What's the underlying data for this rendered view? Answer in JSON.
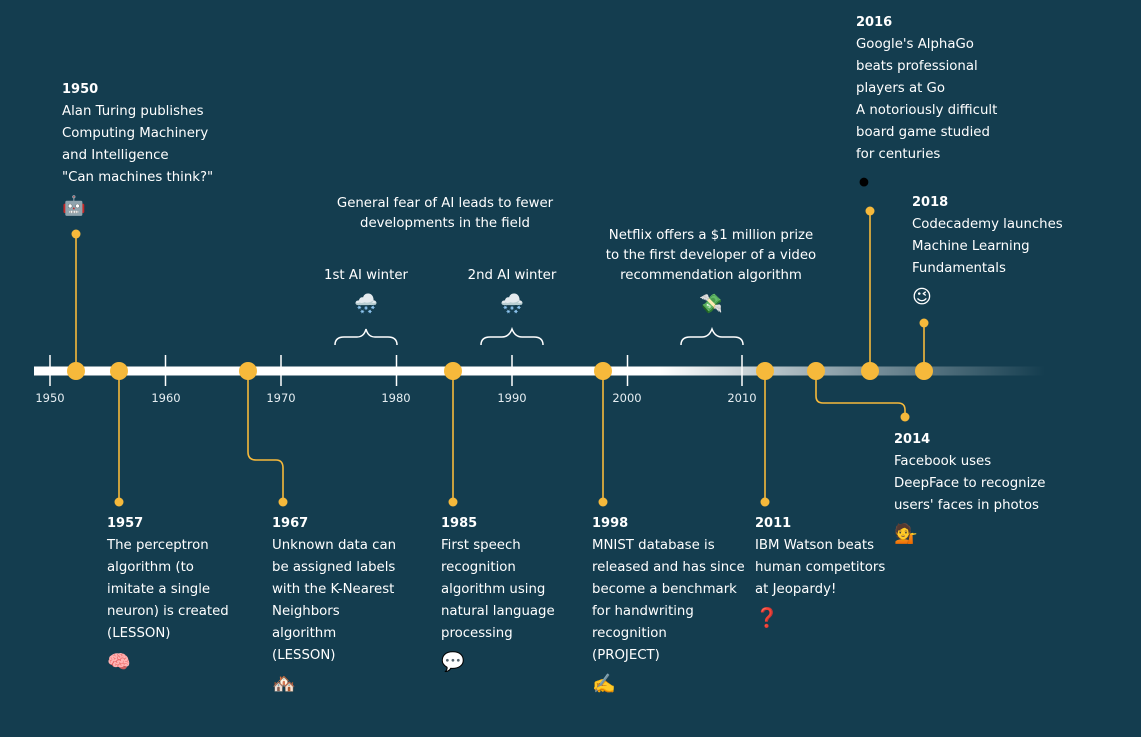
{
  "axis": {
    "ticks": [
      "1950",
      "1960",
      "1970",
      "1980",
      "1990",
      "2000",
      "2010"
    ]
  },
  "colors": {
    "background": "#143d4f",
    "accent": "#f6b93b",
    "line": "#ffffff"
  },
  "events": [
    {
      "year": "1950",
      "lines": [
        "Alan Turing publishes",
        "Computing Machinery",
        "and Intelligence",
        "\"Can machines think?\""
      ],
      "emoji": "🤖",
      "icon": "robot-icon"
    },
    {
      "year": "1957",
      "lines": [
        "The perceptron",
        "algorithm (to",
        "imitate a single",
        "neuron) is created",
        "(LESSON)"
      ],
      "emoji": "🧠",
      "icon": "brain-icon"
    },
    {
      "year": "1967",
      "lines": [
        "Unknown data can",
        "be assigned labels",
        "with the K-Nearest",
        "Neighbors",
        "algorithm",
        "(LESSON)"
      ],
      "emoji": "🏘️",
      "icon": "houses-icon"
    },
    {
      "year": "1985",
      "lines": [
        "First speech",
        "recognition",
        "algorithm using",
        "natural language",
        "processing"
      ],
      "emoji": "💬",
      "icon": "speech-bubble-icon"
    },
    {
      "year": "1998",
      "lines": [
        "MNIST database is",
        "released and has since",
        "become a benchmark",
        "for handwriting",
        "recognition",
        "(PROJECT)"
      ],
      "emoji": "✍️",
      "icon": "writing-hand-icon"
    },
    {
      "year": "2011",
      "lines": [
        "IBM Watson beats",
        "human competitors",
        "at Jeopardy!"
      ],
      "emoji": "❓",
      "icon": "question-mark-icon"
    },
    {
      "year": "2014",
      "lines": [
        "Facebook uses",
        "DeepFace to recognize",
        "users' faces in photos"
      ],
      "emoji": "💁",
      "icon": "person-tipping-hand-icon"
    },
    {
      "year": "2016",
      "lines": [
        "Google's AlphaGo",
        "beats professional",
        "players at Go",
        "A notoriously difficult",
        "board game studied",
        "for centuries"
      ],
      "emoji": "⚫",
      "icon": "go-stone-icon"
    },
    {
      "year": "2018",
      "lines": [
        "Codecademy launches",
        "Machine Learning",
        "Fundamentals"
      ],
      "emoji": "😉",
      "icon": "winking-face-icon"
    }
  ],
  "annotations": {
    "fear": [
      "General fear of AI leads to fewer",
      "developments in the field"
    ],
    "winter1": "1st AI winter",
    "winter2": "2nd AI winter",
    "netflix": [
      "Netflix offers a $1 million prize",
      "to the first developer of a video",
      "recommendation algorithm"
    ],
    "winter_emoji": "🌨️",
    "winter_icon": "snow-cloud-icon",
    "netflix_emoji": "💸",
    "netflix_icon": "money-with-wings-icon"
  }
}
